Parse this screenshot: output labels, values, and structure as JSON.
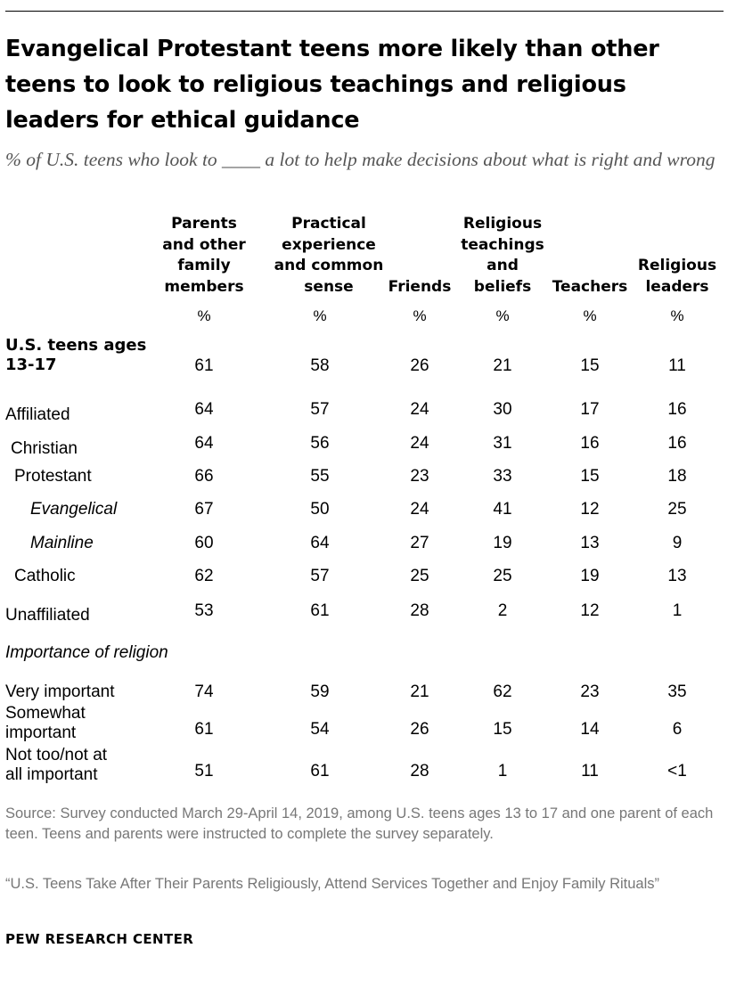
{
  "title": "Evangelical Protestant teens more likely than other teens to look to religious teachings and religious leaders for ethical guidance",
  "subtitle": "% of U.S. teens who look to ____ a lot to help make decisions about what is right and wrong",
  "chart_data": {
    "type": "table",
    "columns": [
      "Parents\nand other\nfamily\nmembers",
      "Practical\nexperience\nand common\nsense",
      "Friends",
      "Religious\nteachings\nand\nbeliefs",
      "Teachers",
      "Religious\nleaders"
    ],
    "unit_row": [
      "%",
      "%",
      "%",
      "%",
      "%",
      "%"
    ],
    "rows": [
      {
        "label": "U.S. teens ages\n13-17",
        "style": "bold",
        "indent": 0,
        "values": [
          "61",
          "58",
          "26",
          "21",
          "15",
          "11"
        ]
      },
      {
        "label": "Affiliated",
        "style": "normal",
        "indent": 0,
        "values": [
          "64",
          "57",
          "24",
          "30",
          "17",
          "16"
        ]
      },
      {
        "label": "Christian",
        "style": "normal",
        "indent": 1,
        "values": [
          "64",
          "56",
          "24",
          "31",
          "16",
          "16"
        ]
      },
      {
        "label": "Protestant",
        "style": "normal",
        "indent": 2,
        "values": [
          "66",
          "55",
          "23",
          "33",
          "15",
          "18"
        ]
      },
      {
        "label": "Evangelical",
        "style": "italic",
        "indent": 3,
        "values": [
          "67",
          "50",
          "24",
          "41",
          "12",
          "25"
        ]
      },
      {
        "label": "Mainline",
        "style": "italic",
        "indent": 3,
        "values": [
          "60",
          "64",
          "27",
          "19",
          "13",
          "9"
        ]
      },
      {
        "label": "Catholic",
        "style": "normal",
        "indent": 2,
        "values": [
          "62",
          "57",
          "25",
          "25",
          "19",
          "13"
        ]
      },
      {
        "label": "Unaffiliated",
        "style": "normal",
        "indent": 0,
        "values": [
          "53",
          "61",
          "28",
          "2",
          "12",
          "1"
        ]
      },
      {
        "label": "Importance of religion",
        "style": "italic",
        "indent": 0,
        "values": []
      },
      {
        "label": "Very important",
        "style": "normal",
        "indent": 0,
        "values": [
          "74",
          "59",
          "21",
          "62",
          "23",
          "35"
        ]
      },
      {
        "label": "Somewhat\nimportant",
        "style": "normal",
        "indent": 0,
        "values": [
          "61",
          "54",
          "26",
          "15",
          "14",
          "6"
        ]
      },
      {
        "label": "Not too/not at\nall important",
        "style": "normal",
        "indent": 0,
        "values": [
          "51",
          "61",
          "28",
          "1",
          "11",
          "<1"
        ]
      }
    ]
  },
  "notes": {
    "source": "Source: Survey conducted March 29-April 14, 2019, among U.S. teens ages 13 to 17 and one parent of each teen. Teens and parents were instructed to complete the survey separately.",
    "report": "“U.S. Teens Take After Their Parents Religiously, Attend Services Together and Enjoy Family Rituals”",
    "brand": "PEW RESEARCH CENTER"
  }
}
